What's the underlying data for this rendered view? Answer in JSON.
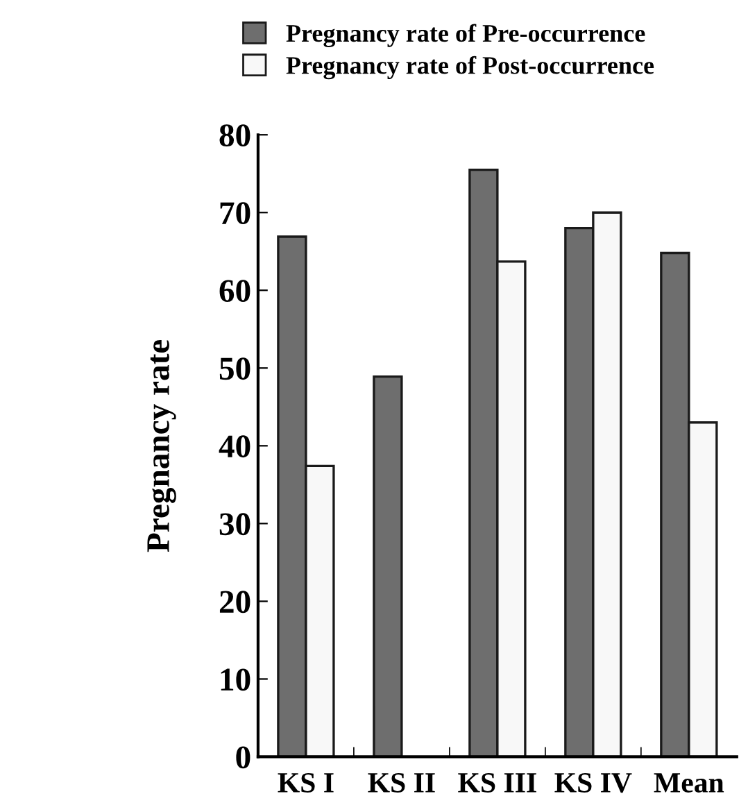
{
  "chart_data": {
    "type": "bar",
    "ylabel": "Pregnancy rate",
    "categories": [
      "KS I",
      "KS II",
      "KS III",
      "KS IV",
      "Mean"
    ],
    "series": [
      {
        "name": "Pregnancy rate of Pre-occurrence",
        "color": "#6e6e6e",
        "values": [
          66.9,
          48.9,
          75.5,
          68.0,
          64.8
        ]
      },
      {
        "name": "Pregnancy rate of Post-occurrence",
        "color": "#f8f8f8",
        "values": [
          37.4,
          0,
          63.7,
          70.0,
          43.0
        ]
      }
    ],
    "ylim": [
      0,
      80
    ],
    "yticks": [
      0,
      10,
      20,
      30,
      40,
      50,
      60,
      70,
      80
    ],
    "grid": false,
    "legend": "top"
  }
}
